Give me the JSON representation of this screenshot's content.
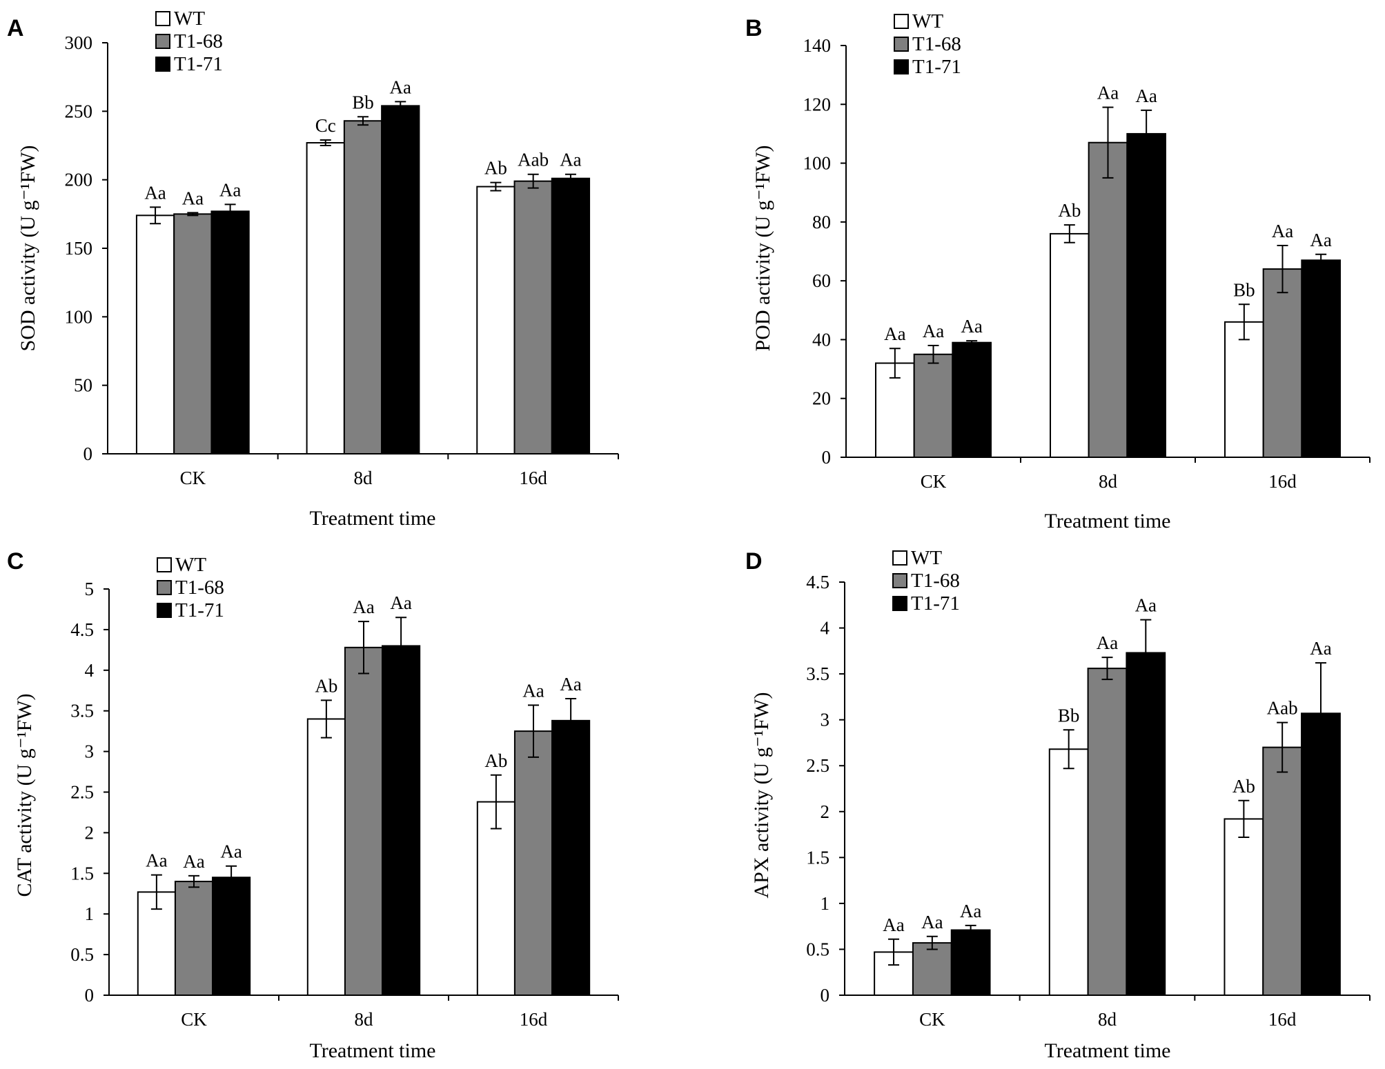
{
  "figure": {
    "series_names": [
      "WT",
      "T1-68",
      "T1-71"
    ],
    "series_colors": [
      "#ffffff",
      "#808080",
      "#000000"
    ]
  },
  "chart_data": [
    {
      "type": "bar",
      "panel": "A",
      "categories": [
        "CK",
        "8d",
        "16d"
      ],
      "xlabel": "Treatment time",
      "ylabel": "SOD activity (U g⁻¹FW)",
      "ylim": [
        0,
        300
      ],
      "yticks": [
        0,
        50,
        100,
        150,
        200,
        250,
        300
      ],
      "ytick_labels": [
        "0",
        "50",
        "100",
        "150",
        "200",
        "250",
        "300"
      ],
      "series": [
        {
          "name": "WT",
          "values": [
            174,
            227,
            195
          ],
          "errors": [
            6,
            2,
            3
          ],
          "labels": [
            "Aa",
            "Cc",
            "Ab"
          ]
        },
        {
          "name": "T1-68",
          "values": [
            175,
            243,
            199
          ],
          "errors": [
            1,
            3,
            5
          ],
          "labels": [
            "Aa",
            "Bb",
            "Aab"
          ]
        },
        {
          "name": "T1-71",
          "values": [
            177,
            254,
            201
          ],
          "errors": [
            5,
            3,
            3
          ],
          "labels": [
            "Aa",
            "Aa",
            "Aa"
          ]
        }
      ]
    },
    {
      "type": "bar",
      "panel": "B",
      "categories": [
        "CK",
        "8d",
        "16d"
      ],
      "xlabel": "Treatment time",
      "ylabel": "POD activity (U g⁻¹FW)",
      "ylim": [
        0,
        140
      ],
      "yticks": [
        0,
        20,
        40,
        60,
        80,
        100,
        120,
        140
      ],
      "ytick_labels": [
        "0",
        "20",
        "40",
        "60",
        "80",
        "100",
        "120",
        "140"
      ],
      "series": [
        {
          "name": "WT",
          "values": [
            32,
            76,
            46
          ],
          "errors": [
            5,
            3,
            6
          ],
          "labels": [
            "Aa",
            "Ab",
            "Bb"
          ]
        },
        {
          "name": "T1-68",
          "values": [
            35,
            107,
            64
          ],
          "errors": [
            3,
            12,
            8
          ],
          "labels": [
            "Aa",
            "Aa",
            "Aa"
          ]
        },
        {
          "name": "T1-71",
          "values": [
            39,
            110,
            67
          ],
          "errors": [
            0.6,
            8,
            2
          ],
          "labels": [
            "Aa",
            "Aa",
            "Aa"
          ]
        }
      ]
    },
    {
      "type": "bar",
      "panel": "C",
      "categories": [
        "CK",
        "8d",
        "16d"
      ],
      "xlabel": "Treatment time",
      "ylabel": "CAT activity (U g⁻¹FW)",
      "ylim": [
        0,
        5
      ],
      "yticks": [
        0,
        0.5,
        1,
        1.5,
        2,
        2.5,
        3,
        3.5,
        4,
        4.5,
        5
      ],
      "ytick_labels": [
        "0",
        "0.5",
        "1",
        "1.5",
        "2",
        "2.5",
        "3",
        "3.5",
        "4",
        "4.5",
        "5"
      ],
      "series": [
        {
          "name": "WT",
          "values": [
            1.27,
            3.4,
            2.38
          ],
          "errors": [
            0.21,
            0.23,
            0.33
          ],
          "labels": [
            "Aa",
            "Ab",
            "Ab"
          ]
        },
        {
          "name": "T1-68",
          "values": [
            1.4,
            4.28,
            3.25
          ],
          "errors": [
            0.07,
            0.32,
            0.32
          ],
          "labels": [
            "Aa",
            "Aa",
            "Aa"
          ]
        },
        {
          "name": "T1-71",
          "values": [
            1.45,
            4.3,
            3.38
          ],
          "errors": [
            0.14,
            0.35,
            0.27
          ],
          "labels": [
            "Aa",
            "Aa",
            "Aa"
          ]
        }
      ]
    },
    {
      "type": "bar",
      "panel": "D",
      "categories": [
        "CK",
        "8d",
        "16d"
      ],
      "xlabel": "Treatment time",
      "ylabel": "APX activity (U g⁻¹FW)",
      "ylim": [
        0,
        4.5
      ],
      "yticks": [
        0,
        0.5,
        1,
        1.5,
        2,
        2.5,
        3,
        3.5,
        4,
        4.5
      ],
      "ytick_labels": [
        "0",
        "0.5",
        "1",
        "1.5",
        "2",
        "2.5",
        "3",
        "3.5",
        "4",
        "4.5"
      ],
      "series": [
        {
          "name": "WT",
          "values": [
            0.47,
            2.68,
            1.92
          ],
          "errors": [
            0.14,
            0.21,
            0.2
          ],
          "labels": [
            "Aa",
            "Bb",
            "Ab"
          ]
        },
        {
          "name": "T1-68",
          "values": [
            0.57,
            3.56,
            2.7
          ],
          "errors": [
            0.07,
            0.12,
            0.27
          ],
          "labels": [
            "Aa",
            "Aa",
            "Aab"
          ]
        },
        {
          "name": "T1-71",
          "values": [
            0.71,
            3.73,
            3.07
          ],
          "errors": [
            0.05,
            0.36,
            0.55
          ],
          "labels": [
            "Aa",
            "Aa",
            "Aa"
          ]
        }
      ]
    }
  ]
}
